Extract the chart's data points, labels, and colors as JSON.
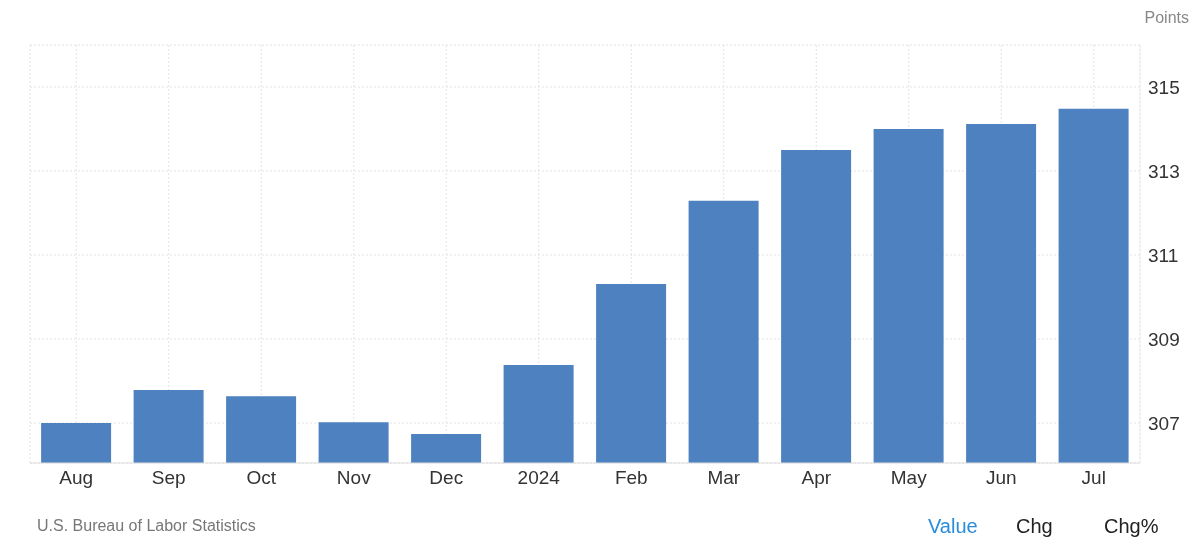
{
  "chart_data": {
    "type": "bar",
    "ylabel": "Points",
    "categories": [
      "Aug",
      "Sep",
      "Oct",
      "Nov",
      "Dec",
      "2024",
      "Feb",
      "Mar",
      "Apr",
      "May",
      "Jun",
      "Jul"
    ],
    "values": [
      307.0,
      307.79,
      307.64,
      307.02,
      306.74,
      308.38,
      310.31,
      312.29,
      313.5,
      314.0,
      314.12,
      314.48
    ],
    "color": "#4e81bf",
    "ylim": [
      306.05,
      316
    ],
    "yticks": [
      307,
      309,
      311,
      313,
      315
    ],
    "grid": true,
    "annotations": [
      "U.S. Bureau of Labor Statistics",
      "Value",
      "Chg",
      "Chg%"
    ]
  }
}
